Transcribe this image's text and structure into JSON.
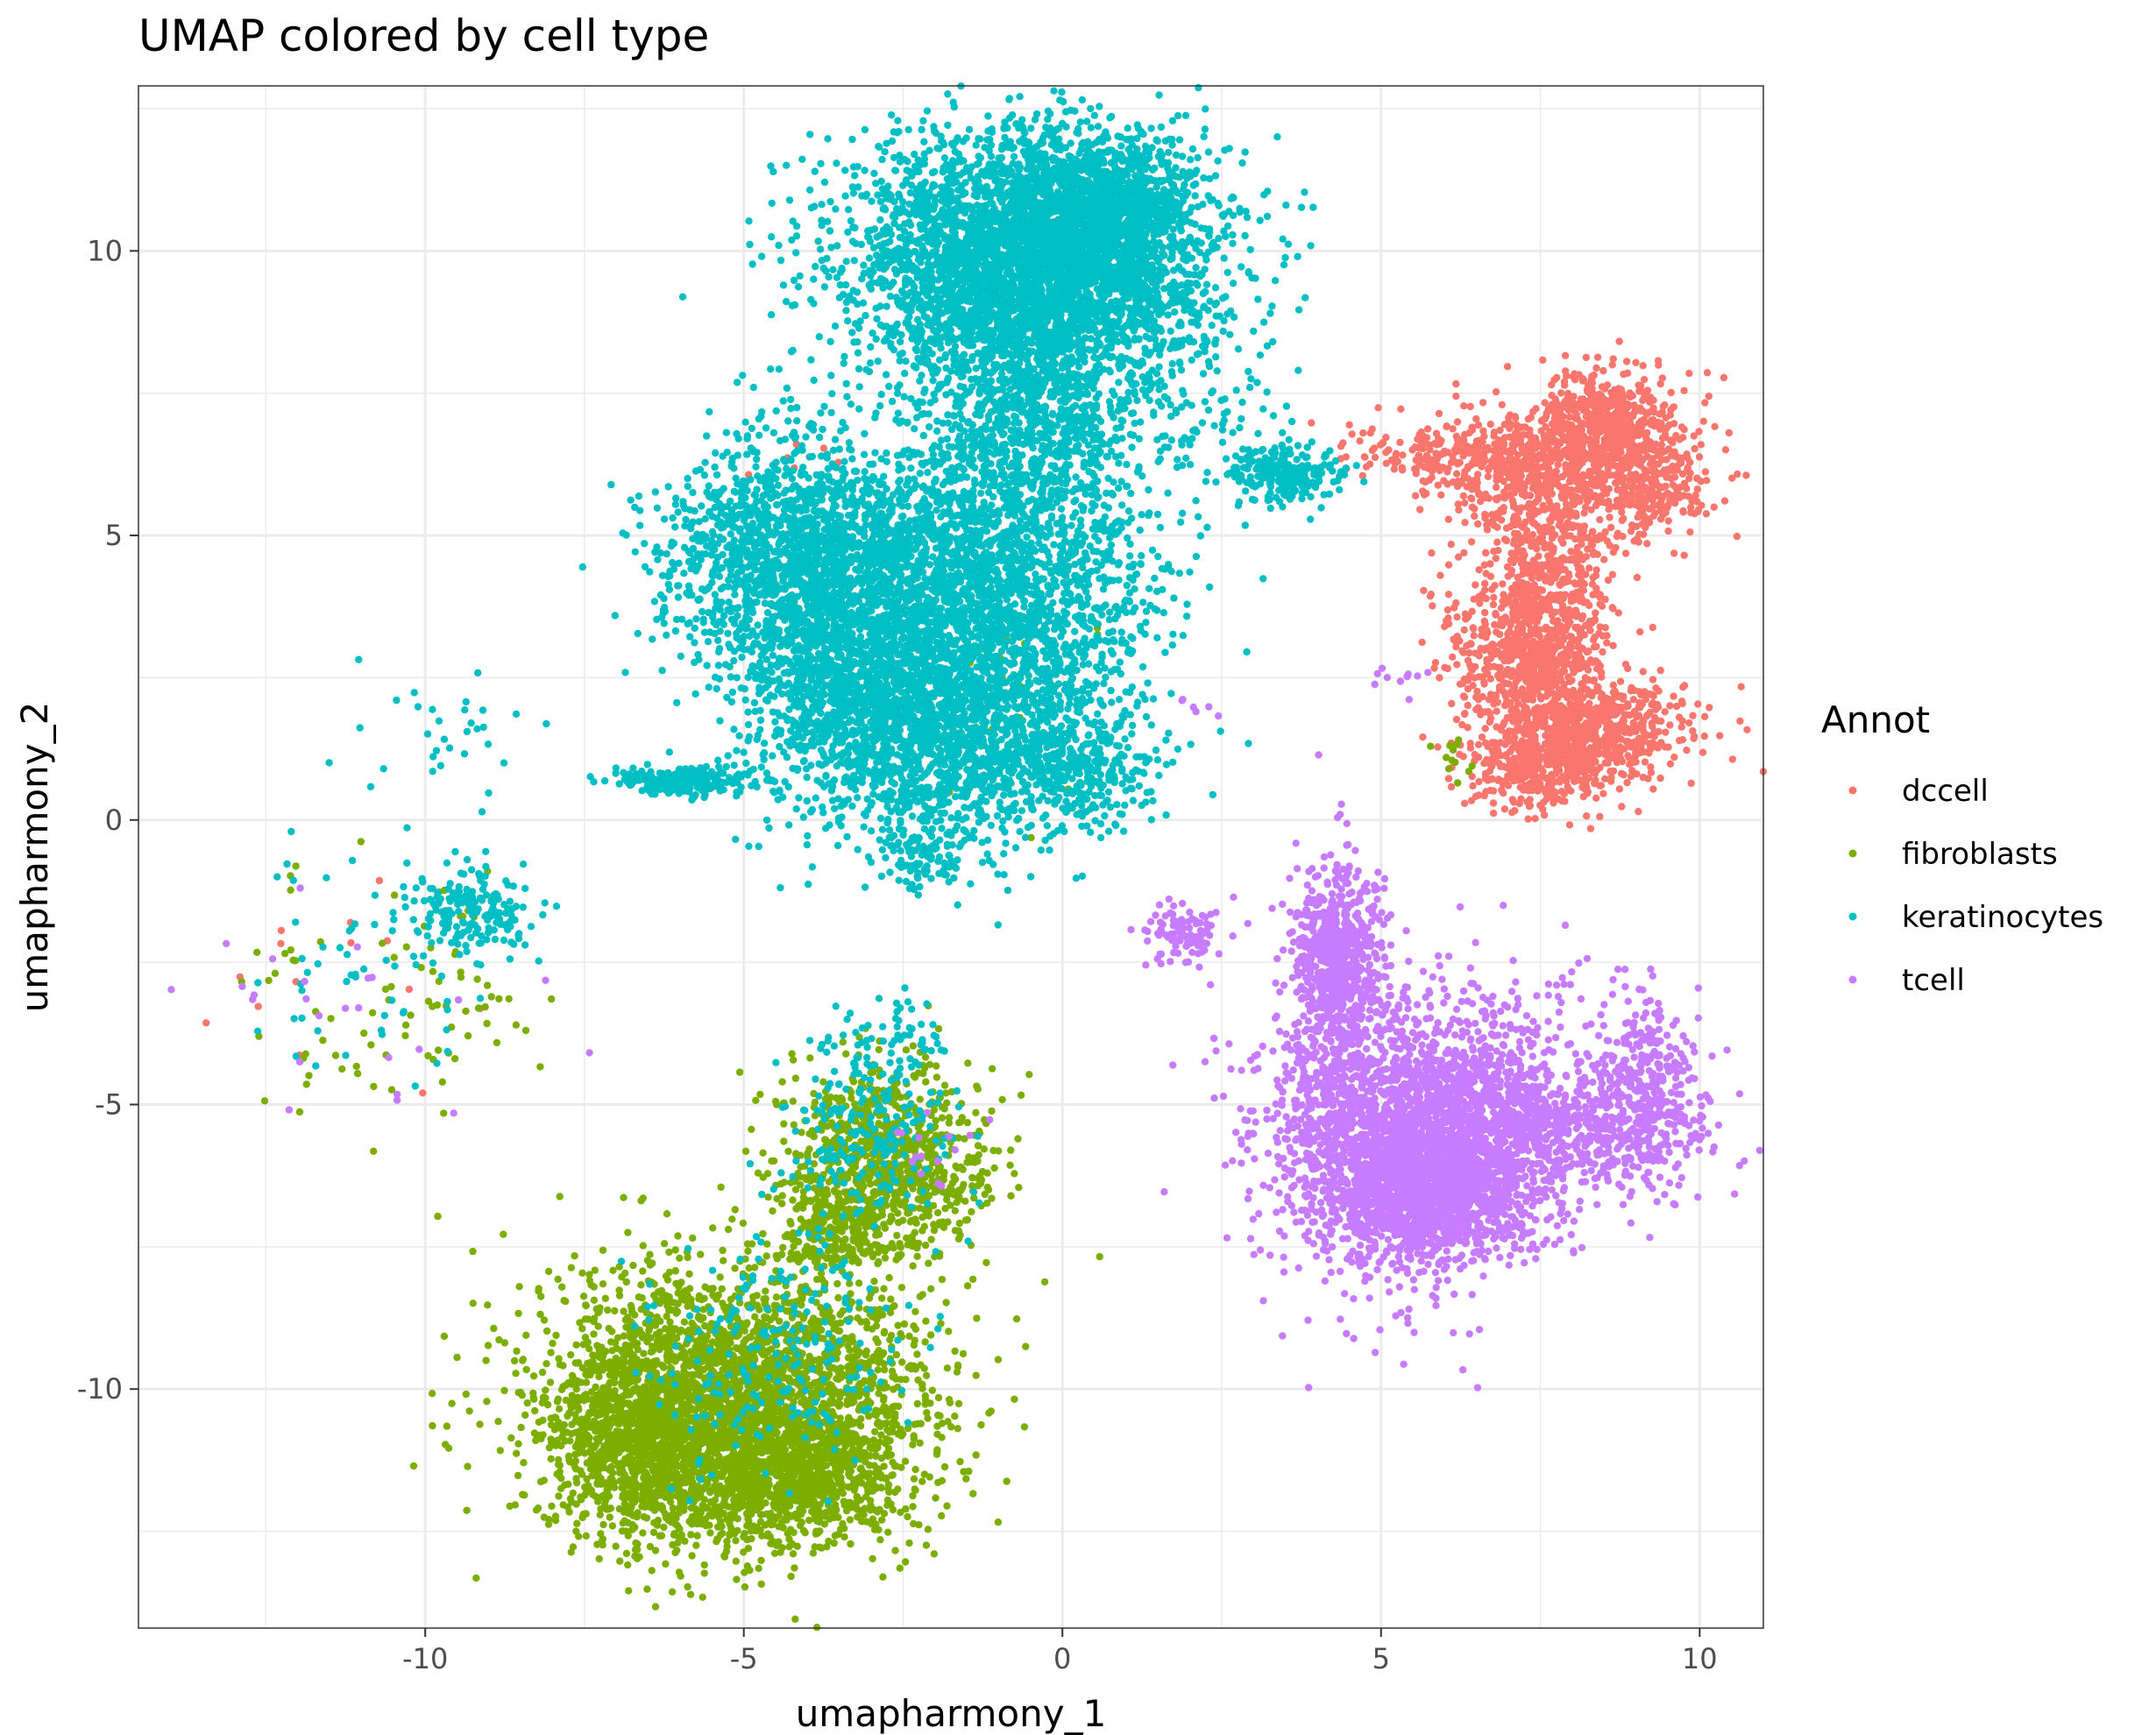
{
  "chart_data": {
    "type": "scatter",
    "title": "UMAP colored by cell type",
    "xlabel": "umapharmony_1",
    "ylabel": "umapharmony_2",
    "xlim": [
      -14.5,
      11.0
    ],
    "ylim": [
      -14.2,
      12.9
    ],
    "xticks": [
      -10,
      -5,
      0,
      5,
      10
    ],
    "xtick_labels": [
      "-10",
      "-5",
      "0",
      "5",
      "10"
    ],
    "yticks": [
      -10,
      -5,
      0,
      5,
      10
    ],
    "ytick_labels": [
      "-10",
      "-5",
      "0",
      "5",
      "10"
    ],
    "grid": true,
    "legend": {
      "title": "Annot",
      "placement": "right"
    },
    "series": [
      {
        "name": "dccell",
        "color": "#F8766D",
        "clusters": [
          {
            "cx": 7.9,
            "cy": 6.1,
            "sx": 1.0,
            "sy": 0.6,
            "n": 700
          },
          {
            "cx": 8.6,
            "cy": 7.0,
            "sx": 0.5,
            "sy": 0.5,
            "n": 450
          },
          {
            "cx": 7.6,
            "cy": 4.2,
            "sx": 0.5,
            "sy": 0.9,
            "n": 500
          },
          {
            "cx": 7.4,
            "cy": 2.8,
            "sx": 0.5,
            "sy": 0.5,
            "n": 450
          },
          {
            "cx": 8.3,
            "cy": 1.6,
            "sx": 0.8,
            "sy": 0.4,
            "n": 650
          },
          {
            "cx": 7.5,
            "cy": 0.9,
            "sx": 0.6,
            "sy": 0.4,
            "n": 350
          },
          {
            "cx": 6.2,
            "cy": 6.4,
            "sx": 0.8,
            "sy": 0.3,
            "n": 200
          },
          {
            "cx": 9.3,
            "cy": 6.0,
            "sx": 0.5,
            "sy": 0.5,
            "n": 150
          },
          {
            "cx": 6.7,
            "cy": 3.8,
            "sx": 0.6,
            "sy": 1.2,
            "n": 120
          },
          {
            "cx": -11.5,
            "cy": -2.8,
            "sx": 1.0,
            "sy": 1.0,
            "n": 14
          },
          {
            "cx": -4.0,
            "cy": 6.2,
            "sx": 0.3,
            "sy": 0.3,
            "n": 6
          }
        ]
      },
      {
        "name": "fibroblasts",
        "color": "#7CAE00",
        "clusters": [
          {
            "cx": -5.2,
            "cy": -10.2,
            "sx": 1.5,
            "sy": 1.2,
            "n": 3000
          },
          {
            "cx": -4.4,
            "cy": -11.5,
            "sx": 0.9,
            "sy": 0.6,
            "n": 800
          },
          {
            "cx": -6.8,
            "cy": -11.0,
            "sx": 0.6,
            "sy": 0.8,
            "n": 600
          },
          {
            "cx": -2.8,
            "cy": -6.0,
            "sx": 0.8,
            "sy": 0.8,
            "n": 900
          },
          {
            "cx": -3.6,
            "cy": -7.2,
            "sx": 0.4,
            "sy": 0.4,
            "n": 200
          },
          {
            "cx": -11.2,
            "cy": -3.2,
            "sx": 1.2,
            "sy": 1.2,
            "n": 50
          },
          {
            "cx": -9.5,
            "cy": -3.0,
            "sx": 0.5,
            "sy": 1.0,
            "n": 40
          },
          {
            "cx": 6.1,
            "cy": 1.0,
            "sx": 0.2,
            "sy": 0.2,
            "n": 12
          },
          {
            "cx": -1.0,
            "cy": 2.0,
            "sx": 0.8,
            "sy": 1.0,
            "n": 25
          },
          {
            "cx": -2.6,
            "cy": -9.6,
            "sx": 0.3,
            "sy": 0.3,
            "n": 12
          }
        ]
      },
      {
        "name": "keratinocytes",
        "color": "#00BFC4",
        "clusters": [
          {
            "cx": -0.5,
            "cy": 9.8,
            "sx": 1.4,
            "sy": 1.1,
            "n": 4000
          },
          {
            "cx": 0.5,
            "cy": 10.8,
            "sx": 0.8,
            "sy": 0.6,
            "n": 1000
          },
          {
            "cx": -4.2,
            "cy": 4.6,
            "sx": 1.0,
            "sy": 1.0,
            "n": 1500
          },
          {
            "cx": -1.5,
            "cy": 4.0,
            "sx": 1.4,
            "sy": 1.4,
            "n": 2500
          },
          {
            "cx": -2.0,
            "cy": 1.5,
            "sx": 1.2,
            "sy": 1.0,
            "n": 1500
          },
          {
            "cx": -3.5,
            "cy": 2.5,
            "sx": 0.8,
            "sy": 0.8,
            "n": 600
          },
          {
            "cx": -0.5,
            "cy": 7.0,
            "sx": 0.8,
            "sy": 1.0,
            "n": 800
          },
          {
            "cx": 0.2,
            "cy": 0.8,
            "sx": 0.6,
            "sy": 0.5,
            "n": 300
          },
          {
            "cx": -2.2,
            "cy": -0.6,
            "sx": 0.3,
            "sy": 0.3,
            "n": 100
          },
          {
            "cx": 3.5,
            "cy": 6.1,
            "sx": 0.4,
            "sy": 0.25,
            "n": 250
          },
          {
            "cx": -6.0,
            "cy": 0.7,
            "sx": 0.6,
            "sy": 0.12,
            "n": 200
          },
          {
            "cx": -9.3,
            "cy": -1.7,
            "sx": 0.5,
            "sy": 0.4,
            "n": 180
          },
          {
            "cx": -11.0,
            "cy": -2.5,
            "sx": 1.2,
            "sy": 1.2,
            "n": 60
          },
          {
            "cx": -9.6,
            "cy": 1.5,
            "sx": 0.6,
            "sy": 0.8,
            "n": 30
          },
          {
            "cx": -3.0,
            "cy": -5.6,
            "sx": 0.7,
            "sy": 0.8,
            "n": 200
          },
          {
            "cx": -4.5,
            "cy": -9.5,
            "sx": 1.0,
            "sy": 1.0,
            "n": 200
          },
          {
            "cx": -2.8,
            "cy": -3.8,
            "sx": 0.5,
            "sy": 0.5,
            "n": 60
          },
          {
            "cx": 1.8,
            "cy": 7.4,
            "sx": 0.8,
            "sy": 1.0,
            "n": 150
          }
        ]
      },
      {
        "name": "tcell",
        "color": "#C77CFF",
        "clusters": [
          {
            "cx": 5.2,
            "cy": -5.5,
            "sx": 1.0,
            "sy": 1.2,
            "n": 2000
          },
          {
            "cx": 6.0,
            "cy": -6.5,
            "sx": 0.8,
            "sy": 0.6,
            "n": 1200
          },
          {
            "cx": 4.3,
            "cy": -2.5,
            "sx": 0.35,
            "sy": 0.9,
            "n": 700
          },
          {
            "cx": 8.0,
            "cy": -5.5,
            "sx": 1.0,
            "sy": 0.5,
            "n": 500
          },
          {
            "cx": 9.2,
            "cy": -4.8,
            "sx": 0.4,
            "sy": 0.8,
            "n": 300
          },
          {
            "cx": 6.8,
            "cy": -4.8,
            "sx": 0.7,
            "sy": 0.5,
            "n": 300
          },
          {
            "cx": 1.9,
            "cy": -2.0,
            "sx": 0.3,
            "sy": 0.3,
            "n": 100
          },
          {
            "cx": 7.5,
            "cy": -3.5,
            "sx": 1.2,
            "sy": 0.6,
            "n": 80
          },
          {
            "cx": -11.0,
            "cy": -3.5,
            "sx": 1.3,
            "sy": 1.0,
            "n": 25
          },
          {
            "cx": -2.0,
            "cy": -5.8,
            "sx": 0.4,
            "sy": 0.4,
            "n": 15
          },
          {
            "cx": 5.1,
            "cy": 2.5,
            "sx": 0.4,
            "sy": 0.3,
            "n": 10
          },
          {
            "cx": 2.0,
            "cy": 2.0,
            "sx": 0.3,
            "sy": 0.2,
            "n": 6
          }
        ]
      }
    ]
  }
}
